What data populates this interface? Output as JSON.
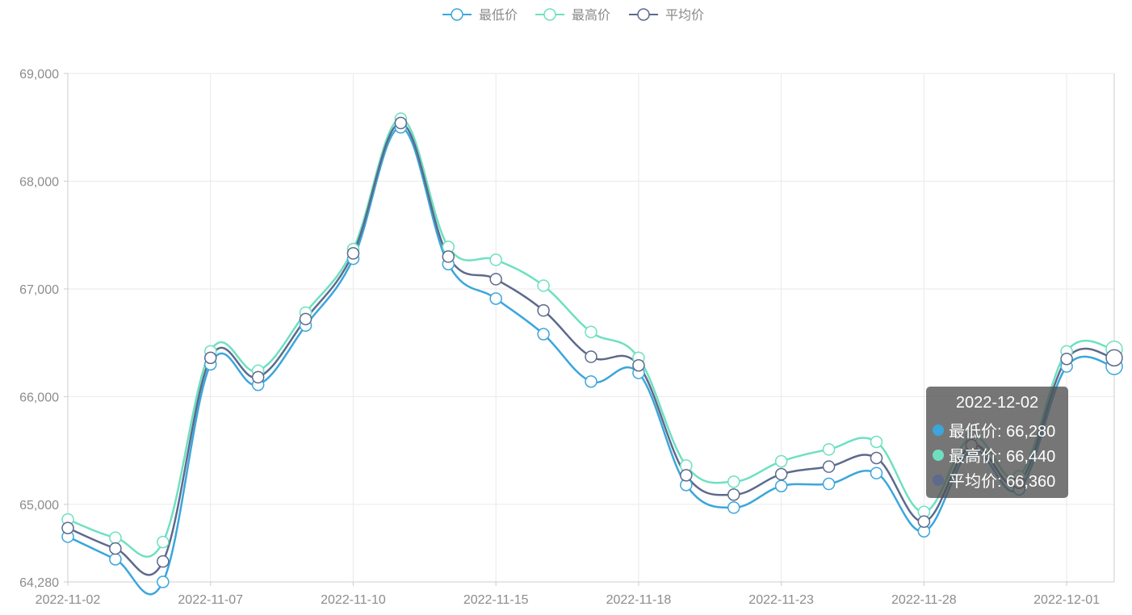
{
  "chart_data": {
    "type": "line",
    "x": [
      "2022-11-02",
      "2022-11-03",
      "2022-11-04",
      "2022-11-07",
      "2022-11-08",
      "2022-11-09",
      "2022-11-10",
      "2022-11-11",
      "2022-11-14",
      "2022-11-15",
      "2022-11-16",
      "2022-11-17",
      "2022-11-18",
      "2022-11-21",
      "2022-11-22",
      "2022-11-23",
      "2022-11-24",
      "2022-11-25",
      "2022-11-28",
      "2022-11-29",
      "2022-11-30",
      "2022-12-01",
      "2022-12-02"
    ],
    "x_tick_labels": [
      "2022-11-02",
      "2022-11-07",
      "2022-11-10",
      "2022-11-15",
      "2022-11-18",
      "2022-11-23",
      "2022-11-28",
      "2022-12-01"
    ],
    "ylim": [
      64280,
      69000
    ],
    "y_tick_labels": [
      "64,280",
      "65,000",
      "66,000",
      "67,000",
      "68,000",
      "69,000"
    ],
    "y_ticks": [
      64280,
      65000,
      66000,
      67000,
      68000,
      69000
    ],
    "grid": true,
    "legend_position": "top-center",
    "series": [
      {
        "name": "最低价",
        "color": "#3ba6dc",
        "values": [
          64700,
          64490,
          64280,
          66300,
          66110,
          66660,
          67280,
          68500,
          67230,
          66910,
          66580,
          66140,
          66220,
          65180,
          64970,
          65170,
          65190,
          65290,
          64750,
          65500,
          65140,
          66280,
          66280
        ]
      },
      {
        "name": "最高价",
        "color": "#6ee0c0",
        "values": [
          64860,
          64690,
          64650,
          66420,
          66240,
          66780,
          67370,
          68580,
          67390,
          67270,
          67030,
          66600,
          66360,
          65360,
          65210,
          65400,
          65510,
          65580,
          64930,
          65630,
          65260,
          66420,
          66440
        ]
      },
      {
        "name": "平均价",
        "color": "#5d6a8c",
        "values": [
          64780,
          64590,
          64470,
          66360,
          66180,
          66720,
          67330,
          68540,
          67300,
          67090,
          66800,
          66370,
          66290,
          65270,
          65090,
          65280,
          65350,
          65430,
          64840,
          65550,
          65200,
          66350,
          66360
        ]
      }
    ]
  },
  "tooltip": {
    "title": "2022-12-02",
    "rows": [
      {
        "label": "最低价: 66,280",
        "color": "#3ba6dc"
      },
      {
        "label": "最高价: 66,440",
        "color": "#6ee0c0"
      },
      {
        "label": "平均价: 66,360",
        "color": "#5d6a8c"
      }
    ]
  }
}
